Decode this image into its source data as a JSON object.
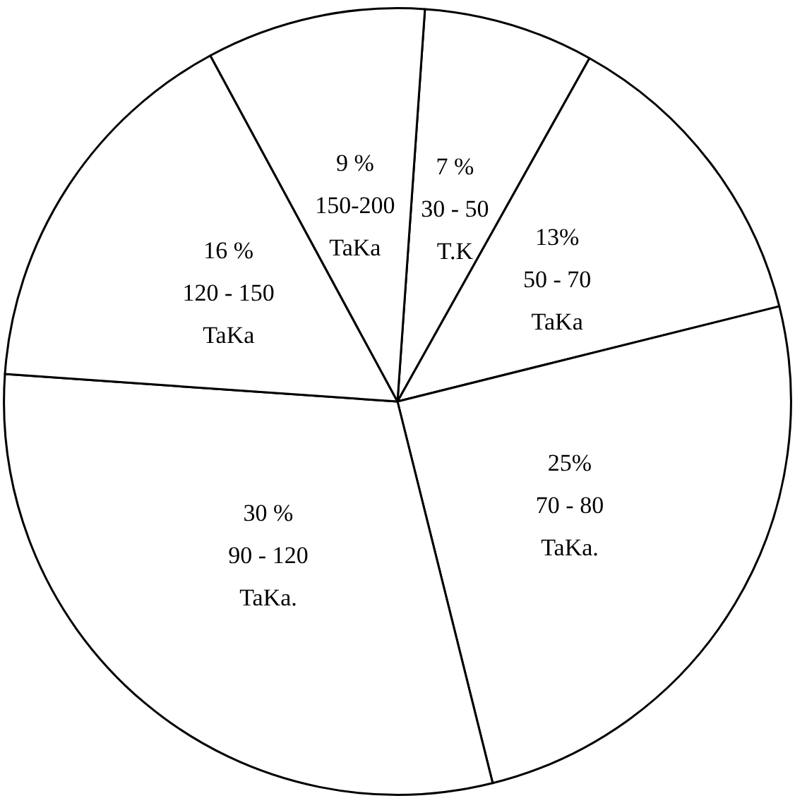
{
  "chart_data": {
    "type": "pie",
    "categories": [
      "30 - 50\nT.K",
      "50 - 70\nTaKa",
      "70 - 80\nTaKa.",
      "90 - 120\nTaKa.",
      "120 - 150\nTaKa",
      "150-200\nTaKa"
    ],
    "values": [
      7,
      13,
      25,
      30,
      16,
      9
    ],
    "value_labels": [
      "7 %",
      "13%",
      "25%",
      "30 %",
      "16 %",
      "9 %"
    ],
    "colors": [
      "#ffffff",
      "#ffffff",
      "#ffffff",
      "#ffffff",
      "#ffffff",
      "#ffffff"
    ],
    "legend": false
  }
}
